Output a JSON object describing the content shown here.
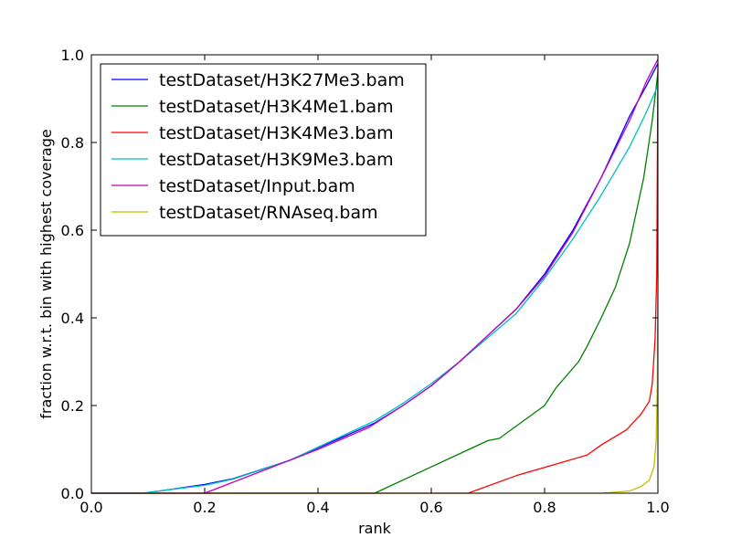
{
  "chart_data": {
    "type": "line",
    "title": "",
    "xlabel": "rank",
    "ylabel": "fraction w.r.t. bin with highest coverage",
    "xlim": [
      0.0,
      1.0
    ],
    "ylim": [
      0.0,
      1.0
    ],
    "xticks": [
      "0.0",
      "0.2",
      "0.4",
      "0.6",
      "0.8",
      "1.0"
    ],
    "yticks": [
      "0.0",
      "0.2",
      "0.4",
      "0.6",
      "0.8",
      "1.0"
    ],
    "grid": false,
    "legend_position": "top-left",
    "series": [
      {
        "name": "testDataset/H3K27Me3.bam",
        "color": "#0000ff",
        "points": [
          [
            0.0,
            0.0
          ],
          [
            0.09,
            0.0
          ],
          [
            0.12,
            0.005
          ],
          [
            0.2,
            0.02
          ],
          [
            0.25,
            0.033
          ],
          [
            0.35,
            0.075
          ],
          [
            0.5,
            0.16
          ],
          [
            0.55,
            0.2
          ],
          [
            0.6,
            0.245
          ],
          [
            0.65,
            0.3
          ],
          [
            0.7,
            0.36
          ],
          [
            0.75,
            0.42
          ],
          [
            0.8,
            0.5
          ],
          [
            0.85,
            0.6
          ],
          [
            0.9,
            0.72
          ],
          [
            0.95,
            0.86
          ],
          [
            0.98,
            0.93
          ],
          [
            1.0,
            0.98
          ]
        ]
      },
      {
        "name": "testDataset/H3K4Me1.bam",
        "color": "#008000",
        "points": [
          [
            0.0,
            0.0
          ],
          [
            0.5,
            0.0
          ],
          [
            0.6,
            0.06
          ],
          [
            0.7,
            0.12
          ],
          [
            0.72,
            0.125
          ],
          [
            0.8,
            0.2
          ],
          [
            0.82,
            0.24
          ],
          [
            0.86,
            0.3
          ],
          [
            0.875,
            0.335
          ],
          [
            0.9,
            0.4
          ],
          [
            0.925,
            0.47
          ],
          [
            0.95,
            0.57
          ],
          [
            0.975,
            0.72
          ],
          [
            0.99,
            0.85
          ],
          [
            1.0,
            0.96
          ]
        ]
      },
      {
        "name": "testDataset/H3K4Me3.bam",
        "color": "#ff0000",
        "points": [
          [
            0.0,
            0.0
          ],
          [
            0.665,
            0.0
          ],
          [
            0.75,
            0.04
          ],
          [
            0.875,
            0.087
          ],
          [
            0.9,
            0.11
          ],
          [
            0.945,
            0.145
          ],
          [
            0.97,
            0.18
          ],
          [
            0.985,
            0.21
          ],
          [
            0.99,
            0.25
          ],
          [
            0.995,
            0.35
          ],
          [
            0.998,
            0.5
          ],
          [
            1.0,
            0.98
          ]
        ]
      },
      {
        "name": "testDataset/H3K9Me3.bam",
        "color": "#00bfbf",
        "points": [
          [
            0.0,
            0.0
          ],
          [
            0.09,
            0.0
          ],
          [
            0.15,
            0.01
          ],
          [
            0.2,
            0.018
          ],
          [
            0.25,
            0.032
          ],
          [
            0.35,
            0.075
          ],
          [
            0.4,
            0.105
          ],
          [
            0.5,
            0.165
          ],
          [
            0.55,
            0.205
          ],
          [
            0.6,
            0.25
          ],
          [
            0.65,
            0.3
          ],
          [
            0.7,
            0.355
          ],
          [
            0.75,
            0.41
          ],
          [
            0.8,
            0.49
          ],
          [
            0.85,
            0.58
          ],
          [
            0.9,
            0.68
          ],
          [
            0.95,
            0.79
          ],
          [
            0.98,
            0.87
          ],
          [
            1.0,
            0.93
          ]
        ]
      },
      {
        "name": "testDataset/Input.bam",
        "color": "#bf00bf",
        "points": [
          [
            0.0,
            0.0
          ],
          [
            0.2,
            0.0
          ],
          [
            0.3,
            0.05
          ],
          [
            0.4,
            0.1
          ],
          [
            0.49,
            0.15
          ],
          [
            0.55,
            0.2
          ],
          [
            0.6,
            0.245
          ],
          [
            0.65,
            0.3
          ],
          [
            0.7,
            0.36
          ],
          [
            0.75,
            0.42
          ],
          [
            0.8,
            0.495
          ],
          [
            0.85,
            0.595
          ],
          [
            0.9,
            0.72
          ],
          [
            0.95,
            0.85
          ],
          [
            0.98,
            0.94
          ],
          [
            1.0,
            0.99
          ]
        ]
      },
      {
        "name": "testDataset/RNAseq.bam",
        "color": "#bfbf00",
        "points": [
          [
            0.0,
            0.0
          ],
          [
            0.9,
            0.0
          ],
          [
            0.95,
            0.005
          ],
          [
            0.97,
            0.015
          ],
          [
            0.985,
            0.03
          ],
          [
            0.993,
            0.06
          ],
          [
            0.997,
            0.12
          ],
          [
            0.999,
            0.25
          ],
          [
            1.0,
            0.5
          ]
        ]
      }
    ]
  }
}
